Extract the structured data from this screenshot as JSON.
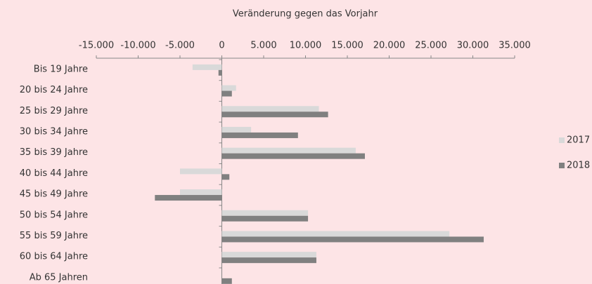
{
  "chart_data": {
    "type": "hbar",
    "xlabel": "Veränderung gegen das Vorjahr",
    "categories": [
      "Bis 19 Jahre",
      "20 bis 24 Jahre",
      "25 bis 29 Jahre",
      "30 bis 34 Jahre",
      "35 bis 39 Jahre",
      "40 bis 44 Jahre",
      "45 bis 49 Jahre",
      "50 bis 54 Jahre",
      "55 bis 59 Jahre",
      "60 bis 64 Jahre",
      "Ab 65 Jahren"
    ],
    "series": [
      {
        "name": "2017",
        "color": "#d9d9d9",
        "values": [
          -3500,
          1700,
          11600,
          3500,
          16000,
          -5000,
          -5000,
          10300,
          27200,
          11300,
          0
        ]
      },
      {
        "name": "2018",
        "color": "#808080",
        "values": [
          -400,
          1200,
          12700,
          9100,
          17100,
          900,
          -8000,
          10300,
          31300,
          11300,
          1200
        ]
      }
    ],
    "xlim": [
      -15000,
      35000
    ],
    "xticks": [
      {
        "value": -15000,
        "label": "-15.000"
      },
      {
        "value": -10000,
        "label": "-10.000"
      },
      {
        "value": -5000,
        "label": "-5.000"
      },
      0,
      {
        "value": 5000,
        "label": "5.000"
      },
      {
        "value": 10000,
        "label": "10.000"
      },
      {
        "value": 15000,
        "label": "15.000"
      },
      {
        "value": 20000,
        "label": "20.000"
      },
      {
        "value": 25000,
        "label": "25.000"
      },
      {
        "value": 30000,
        "label": "30.000"
      },
      {
        "value": 35000,
        "label": "35.000"
      }
    ],
    "legend": "right"
  }
}
